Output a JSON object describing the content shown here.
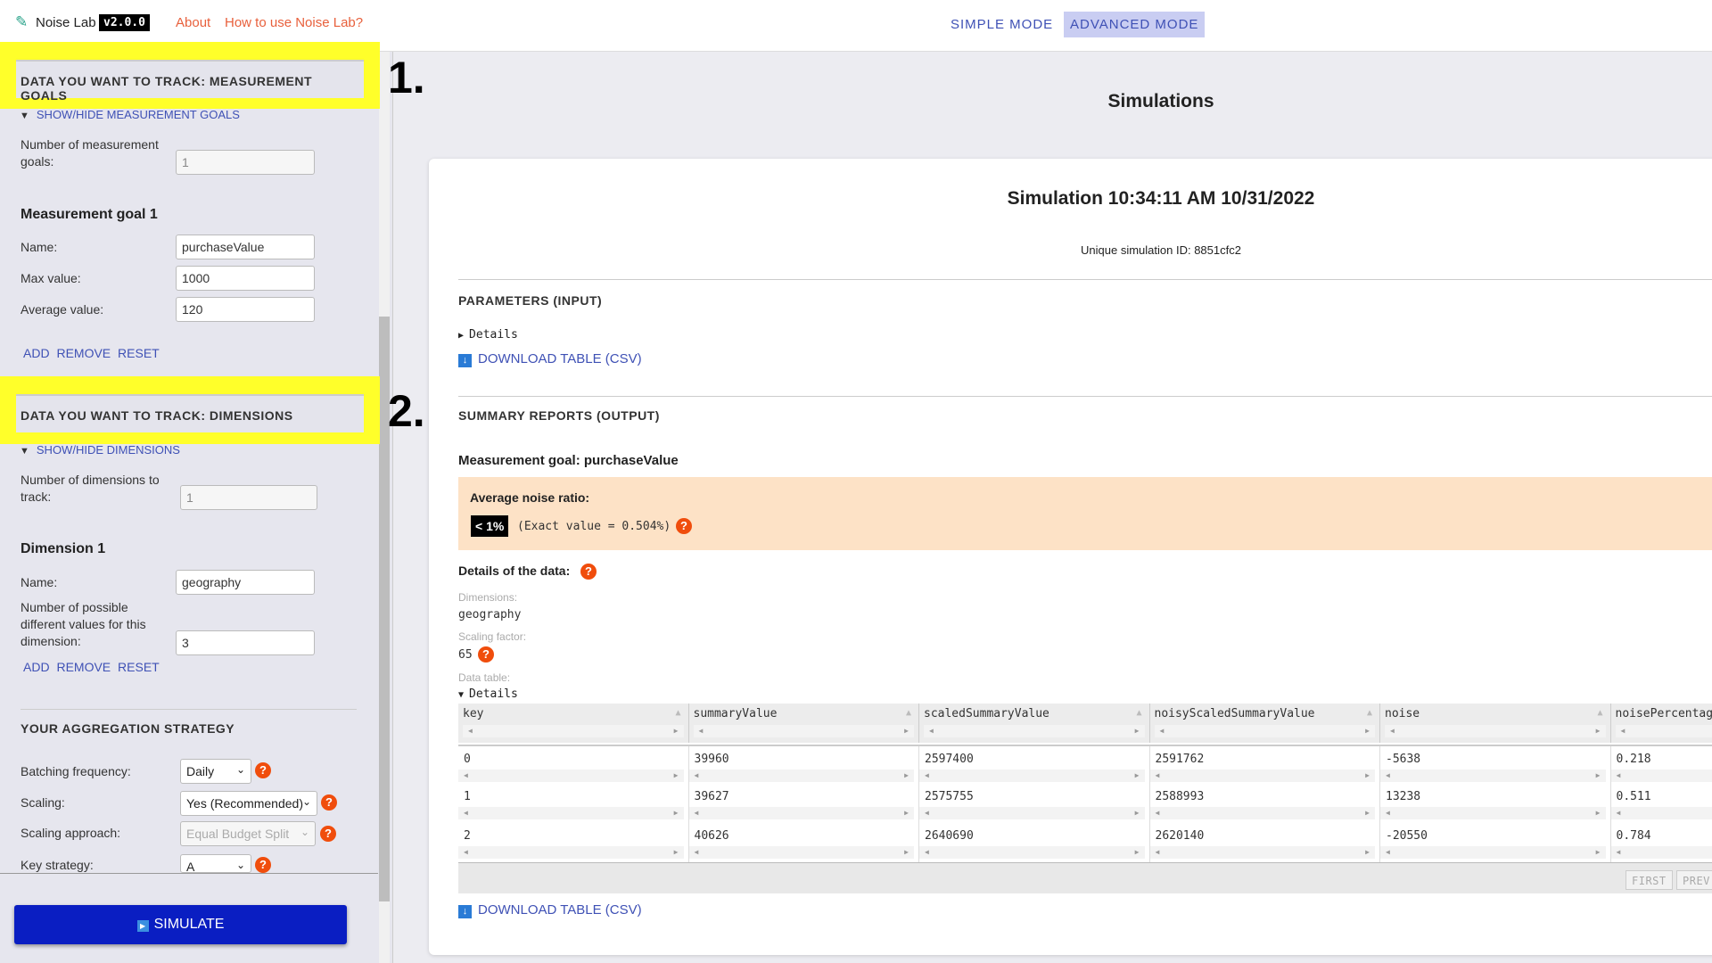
{
  "topbar": {
    "app_name": "Noise Lab",
    "version": "v2.0.0",
    "about": "About",
    "how_to": "How to use Noise Lab?",
    "simple_mode": "SIMPLE MODE",
    "advanced_mode": "ADVANCED MODE",
    "icon": "test-tube-icon"
  },
  "annotations": {
    "one": "1.",
    "two": "2."
  },
  "sidebar": {
    "measurement": {
      "header": "DATA YOU WANT TO TRACK: MEASUREMENT GOALS",
      "toggle": "SHOW/HIDE MEASUREMENT GOALS",
      "count_label": "Number of measurement goals:",
      "count_value": "1",
      "goal_title": "Measurement goal 1",
      "name_label": "Name:",
      "name_value": "purchaseValue",
      "max_label": "Max value:",
      "max_value": "1000",
      "avg_label": "Average value:",
      "avg_value": "120",
      "add": "ADD",
      "remove": "REMOVE",
      "reset": "RESET"
    },
    "dimensions": {
      "header": "DATA YOU WANT TO TRACK: DIMENSIONS",
      "toggle": "SHOW/HIDE DIMENSIONS",
      "count_label": "Number of dimensions to track:",
      "count_value": "1",
      "dim_title": "Dimension 1",
      "name_label": "Name:",
      "name_value": "geography",
      "values_label": "Number of possible different values for this dimension:",
      "values_value": "3",
      "add": "ADD",
      "remove": "REMOVE",
      "reset": "RESET"
    },
    "strategy": {
      "header": "YOUR AGGREGATION STRATEGY",
      "batching_label": "Batching frequency:",
      "batching_value": "Daily",
      "scaling_label": "Scaling:",
      "scaling_value": "Yes (Recommended)",
      "approach_label": "Scaling approach:",
      "approach_value": "Equal Budget Split",
      "key_label": "Key strategy:",
      "key_value": "A"
    },
    "simulate": "SIMULATE"
  },
  "main": {
    "title": "Simulations",
    "sim_title": "Simulation 10:34:11 AM 10/31/2022",
    "sim_id": "Unique simulation ID: 8851cfc2",
    "params_header": "PARAMETERS (INPUT)",
    "details": "Details",
    "download": "DOWNLOAD TABLE (CSV)",
    "summary_header": "SUMMARY REPORTS (OUTPUT)",
    "goal_label": "Measurement goal: purchaseValue",
    "avg_noise_label": "Average noise ratio:",
    "avg_noise_badge": "< 1%",
    "avg_noise_exact": "(Exact value = 0.504%)",
    "details_data": "Details of the data:",
    "dimensions_label": "Dimensions:",
    "dimensions_value": "geography",
    "scaling_label": "Scaling factor:",
    "scaling_value": "65",
    "data_table_label": "Data table:",
    "table": {
      "columns": [
        "key",
        "summaryValue",
        "scaledSummaryValue",
        "noisyScaledSummaryValue",
        "noise",
        "noisePercentag"
      ],
      "rows": [
        [
          "0",
          "39960",
          "2597400",
          "2591762",
          "-5638",
          "0.218"
        ],
        [
          "1",
          "39627",
          "2575755",
          "2588993",
          "13238",
          "0.511"
        ],
        [
          "2",
          "40626",
          "2640690",
          "2620140",
          "-20550",
          "0.784"
        ]
      ],
      "first": "FIRST",
      "prev": "PREV"
    }
  },
  "colors": {
    "accent": "#3f51b5",
    "highlight": "#ffff2a",
    "help": "#f04d0c",
    "simulate": "#0a1ec2",
    "noise_box": "#fde2c6"
  }
}
